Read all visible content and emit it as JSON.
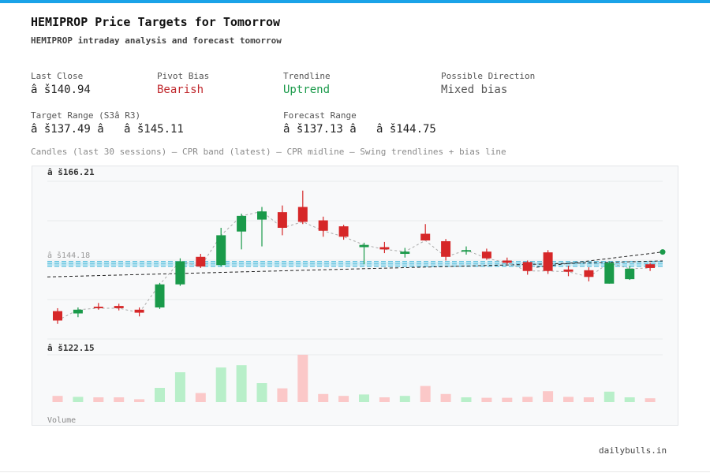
{
  "header": {
    "title": "HEMIPROP Price Targets for Tomorrow",
    "subtitle": "HEMIPROP intraday analysis and forecast tomorrow"
  },
  "stats": {
    "last_close_label": "Last Close",
    "last_close_value": "â š140.94",
    "pivot_bias_label": "Pivot Bias",
    "pivot_bias_value": "Bearish",
    "trendline_label": "Trendline",
    "trendline_value": "Uptrend",
    "direction_label": "Possible Direction",
    "direction_value": "Mixed bias",
    "target_range_label": "Target Range (S3â  R3)",
    "target_range_value": "â š137.49 â   â š145.11",
    "forecast_range_label": "Forecast Range",
    "forecast_range_value": "â š137.13 â   â š144.75"
  },
  "caption": "Candles (last 30 sessions) — CPR band (latest) — CPR midline — Swing trendlines + bias line",
  "footer": "dailybulls.in",
  "colors": {
    "up": "#1a9a4a",
    "down": "#d62728",
    "up_volume": "#b8efc9",
    "down_volume": "#fbc8c8",
    "cpr": "#5bc0de",
    "accent": "#1aa3e8"
  },
  "chart_data": {
    "type": "candlestick",
    "axis_labels": {
      "top": "â š166.21",
      "mid": "â š144.18",
      "bottom": "â š122.15"
    },
    "ylim": [
      122.15,
      166.21
    ],
    "volume_label": "Volume",
    "candles": [
      {
        "o": 129.2,
        "h": 130.0,
        "l": 125.8,
        "c": 126.7
      },
      {
        "o": 128.6,
        "h": 130.2,
        "l": 127.6,
        "c": 129.6
      },
      {
        "o": 130.4,
        "h": 131.4,
        "l": 129.6,
        "c": 130.0
      },
      {
        "o": 130.6,
        "h": 131.2,
        "l": 129.4,
        "c": 130.0
      },
      {
        "o": 129.6,
        "h": 130.2,
        "l": 127.8,
        "c": 128.8
      },
      {
        "o": 130.2,
        "h": 136.8,
        "l": 129.8,
        "c": 136.4
      },
      {
        "o": 136.4,
        "h": 143.4,
        "l": 136.0,
        "c": 142.6
      },
      {
        "o": 143.8,
        "h": 144.6,
        "l": 140.8,
        "c": 141.2
      },
      {
        "o": 141.6,
        "h": 151.6,
        "l": 141.2,
        "c": 149.6
      },
      {
        "o": 150.6,
        "h": 155.4,
        "l": 145.8,
        "c": 154.8
      },
      {
        "o": 153.8,
        "h": 157.2,
        "l": 146.6,
        "c": 156.0
      },
      {
        "o": 155.8,
        "h": 157.6,
        "l": 149.6,
        "c": 151.6
      },
      {
        "o": 157.2,
        "h": 161.6,
        "l": 152.6,
        "c": 153.2
      },
      {
        "o": 153.6,
        "h": 154.6,
        "l": 149.2,
        "c": 150.8
      },
      {
        "o": 152.0,
        "h": 152.4,
        "l": 148.4,
        "c": 149.2
      },
      {
        "o": 146.4,
        "h": 147.6,
        "l": 141.8,
        "c": 147.0
      },
      {
        "o": 146.4,
        "h": 147.8,
        "l": 144.8,
        "c": 145.8
      },
      {
        "o": 144.6,
        "h": 146.2,
        "l": 143.6,
        "c": 145.2
      },
      {
        "o": 150.0,
        "h": 152.6,
        "l": 148.2,
        "c": 148.2
      },
      {
        "o": 148.0,
        "h": 148.6,
        "l": 142.8,
        "c": 143.8
      },
      {
        "o": 145.2,
        "h": 146.6,
        "l": 144.4,
        "c": 145.6
      },
      {
        "o": 145.2,
        "h": 146.0,
        "l": 143.0,
        "c": 143.4
      },
      {
        "o": 142.8,
        "h": 143.6,
        "l": 141.8,
        "c": 142.2
      },
      {
        "o": 142.4,
        "h": 142.8,
        "l": 139.0,
        "c": 140.0
      },
      {
        "o": 145.0,
        "h": 145.6,
        "l": 139.2,
        "c": 140.0
      },
      {
        "o": 140.4,
        "h": 141.4,
        "l": 138.6,
        "c": 139.8
      },
      {
        "o": 140.2,
        "h": 141.0,
        "l": 137.2,
        "c": 138.4
      },
      {
        "o": 136.6,
        "h": 142.6,
        "l": 136.6,
        "c": 142.2
      },
      {
        "o": 137.8,
        "h": 141.4,
        "l": 137.6,
        "c": 140.6
      },
      {
        "o": 141.8,
        "h": 142.2,
        "l": 140.0,
        "c": 140.8
      }
    ],
    "volumes": [
      0.13,
      0.11,
      0.1,
      0.1,
      0.06,
      0.3,
      0.63,
      0.19,
      0.73,
      0.78,
      0.4,
      0.29,
      1.0,
      0.17,
      0.13,
      0.16,
      0.1,
      0.13,
      0.34,
      0.17,
      0.1,
      0.09,
      0.09,
      0.11,
      0.23,
      0.11,
      0.1,
      0.22,
      0.1,
      0.08
    ],
    "cpr_band": [
      141.3,
      142.5
    ],
    "cpr_midline": 141.9,
    "trendline": {
      "start": 138.4,
      "end": 142.7
    },
    "bias_line": {
      "start": 141.0,
      "end": 145.1
    }
  }
}
